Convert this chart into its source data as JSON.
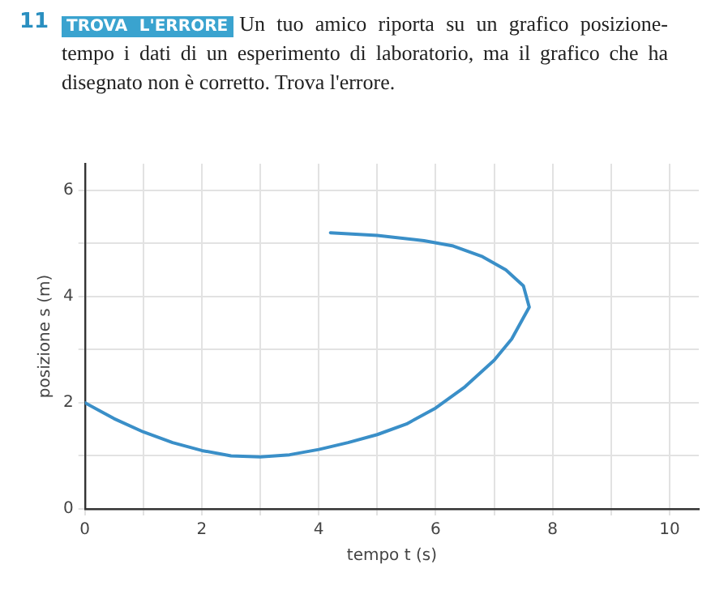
{
  "chart_data": {
    "type": "line",
    "annotations": [
      "11",
      "TROVA L'ERRORE",
      "Un tuo amico riporta su un grafico posizione-tempo i dati di un esperimento di laboratorio, ma il grafico che ha disegnato non è corretto. Trova l'errore."
    ],
    "xlabel": "tempo t (s)",
    "ylabel": "posizione s (m)",
    "series": [
      {
        "color": "#3a8fc8",
        "x": [
          0,
          0.5,
          1,
          1.5,
          2,
          2.5,
          3,
          3.5,
          4,
          4.5,
          5,
          5.5,
          6,
          6.5,
          7,
          7.3,
          7.5,
          7.6,
          7.5,
          7.2,
          6.8,
          6.3,
          5.8,
          5,
          4.2
        ],
        "values": [
          2,
          1.7,
          1.45,
          1.25,
          1.1,
          1.0,
          0.98,
          1.02,
          1.12,
          1.25,
          1.4,
          1.6,
          1.9,
          2.3,
          2.8,
          3.2,
          3.6,
          3.8,
          4.2,
          4.5,
          4.75,
          4.95,
          5.05,
          5.15,
          5.2
        ]
      }
    ],
    "xlim": [
      0,
      10.5
    ],
    "ylim": [
      0,
      6.5
    ],
    "xticks": [
      0,
      {
        "value": 1,
        "label": null
      },
      2,
      {
        "value": 3,
        "label": null
      },
      4,
      {
        "value": 5,
        "label": null
      },
      6,
      {
        "value": 7,
        "label": null
      },
      8,
      {
        "value": 9,
        "label": null
      },
      10
    ],
    "yticks": [
      0,
      {
        "value": 1,
        "label": null
      },
      2,
      {
        "value": 3,
        "label": null
      },
      4,
      {
        "value": 5,
        "label": null
      },
      6
    ],
    "grid": true,
    "legend": false
  }
}
